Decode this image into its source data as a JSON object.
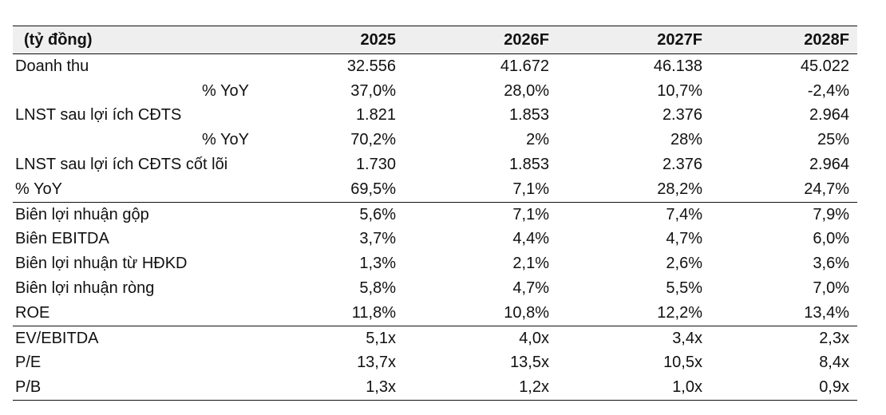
{
  "table": {
    "headers": [
      "(tỷ đồng)",
      "2025",
      "2026F",
      "2027F",
      "2028F"
    ],
    "rows": [
      {
        "label": "Doanh thu",
        "values": [
          "32.556",
          "41.672",
          "46.138",
          "45.022"
        ]
      },
      {
        "label": "% YoY",
        "values": [
          "37,0%",
          "28,0%",
          "10,7%",
          "-2,4%"
        ]
      },
      {
        "label": "LNST sau lợi ích CĐTS",
        "values": [
          "1.821",
          "1.853",
          "2.376",
          "2.964"
        ]
      },
      {
        "label": "% YoY",
        "values": [
          "70,2%",
          "2%",
          "28%",
          "25%"
        ]
      },
      {
        "label": "LNST sau lợi ích CĐTS cốt lõi",
        "values": [
          "1.730",
          "1.853",
          "2.376",
          "2.964"
        ]
      },
      {
        "label": "% YoY",
        "values": [
          "69,5%",
          "7,1%",
          "28,2%",
          "24,7%"
        ]
      },
      {
        "label": "Biên lợi nhuận gộp",
        "values": [
          "5,6%",
          "7,1%",
          "7,4%",
          "7,9%"
        ]
      },
      {
        "label": "Biên EBITDA",
        "values": [
          "3,7%",
          "4,4%",
          "4,7%",
          "6,0%"
        ]
      },
      {
        "label": "Biên lợi nhuận từ HĐKD",
        "values": [
          "1,3%",
          "2,1%",
          "2,6%",
          "3,6%"
        ]
      },
      {
        "label": "Biên lợi nhuận ròng",
        "values": [
          "5,8%",
          "4,7%",
          "5,5%",
          "7,0%"
        ]
      },
      {
        "label": "ROE",
        "values": [
          "11,8%",
          "10,8%",
          "12,2%",
          "13,4%"
        ]
      },
      {
        "label": "EV/EBITDA",
        "values": [
          "5,1x",
          "4,0x",
          "3,4x",
          "2,3x"
        ]
      },
      {
        "label": "P/E",
        "values": [
          "13,7x",
          "13,5x",
          "10,5x",
          "8,4x"
        ]
      },
      {
        "label": "P/B",
        "values": [
          "1,3x",
          "1,2x",
          "1,0x",
          "0,9x"
        ]
      }
    ]
  }
}
